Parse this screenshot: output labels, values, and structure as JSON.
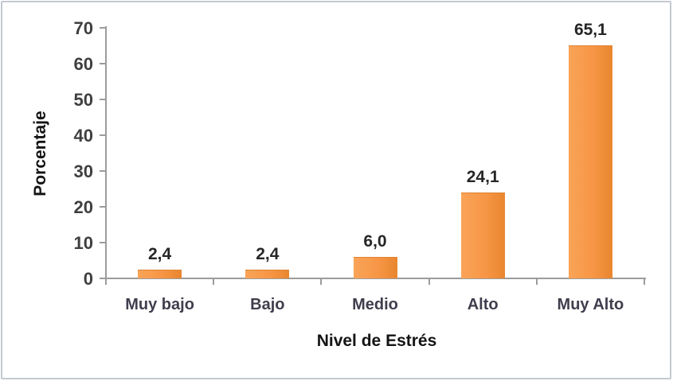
{
  "chart_data": {
    "type": "bar",
    "title": "",
    "xlabel": "Nivel de Estrés",
    "ylabel": "Porcentaje",
    "categories": [
      "Muy bajo",
      "Bajo",
      "Medio",
      "Alto",
      "Muy Alto"
    ],
    "values": [
      2.4,
      2.4,
      6.0,
      24.1,
      65.1
    ],
    "value_labels": [
      "2,4",
      "2,4",
      "6,0",
      "24,1",
      "65,1"
    ],
    "ylim": [
      0,
      70
    ],
    "ytick_interval": 10,
    "ytick_labels": [
      "0",
      "10",
      "20",
      "30",
      "40",
      "50",
      "60",
      "70"
    ],
    "grid": "off",
    "legend": "none",
    "colors": {
      "bar_light": "#f9a458",
      "bar_main": "#f79646",
      "bar_dark": "#e8862f",
      "axis_line": "#9c9c9c",
      "tick_text": "#3f3f3f",
      "category_text": "#413d4d",
      "title_text": "#141414",
      "frame_border": "#c4cad0",
      "background": "#ffffff"
    }
  }
}
